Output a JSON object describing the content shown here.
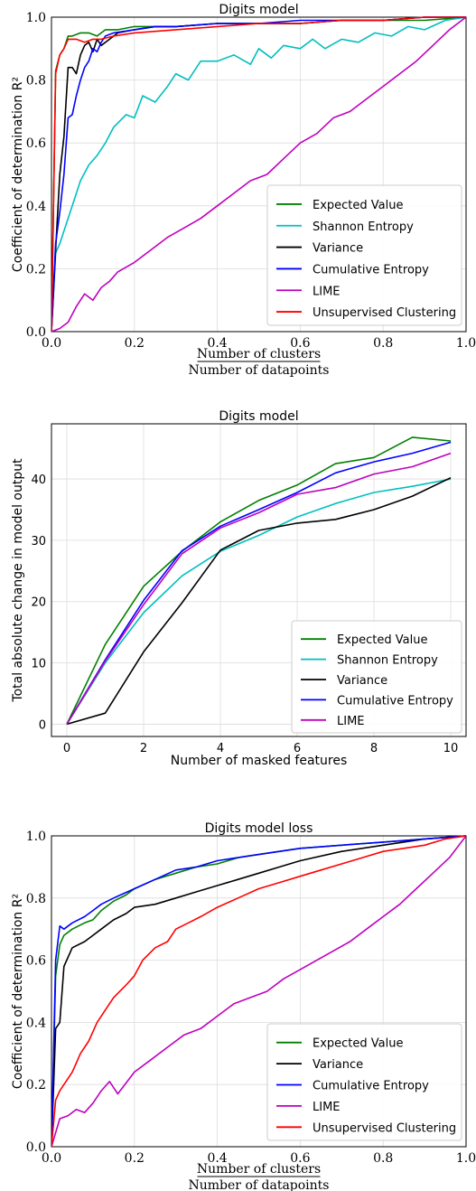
{
  "chart_data": [
    {
      "type": "line",
      "title": "Digits model",
      "ylabel": "Coefficient of determination R²",
      "xlabel_numerator": "Number of clusters",
      "xlabel_denominator": "Number of datapoints",
      "xlim": [
        0,
        1
      ],
      "ylim": [
        0,
        1
      ],
      "xticks": [
        "0.0",
        "0.2",
        "0.4",
        "0.6",
        "0.8",
        "1.0"
      ],
      "yticks": [
        "0.0",
        "0.2",
        "0.4",
        "0.6",
        "0.8",
        "1.0"
      ],
      "grid": true,
      "legend_position": "bottom-right",
      "series": [
        {
          "name": "Expected Value",
          "color": "#008000",
          "x": [
            0,
            0.01,
            0.02,
            0.03,
            0.04,
            0.05,
            0.07,
            0.09,
            0.11,
            0.13,
            0.16,
            0.2,
            0.25,
            0.3,
            0.4,
            0.5,
            0.6,
            0.7,
            0.8,
            0.9,
            1.0
          ],
          "y": [
            0,
            0.83,
            0.88,
            0.9,
            0.94,
            0.94,
            0.95,
            0.95,
            0.94,
            0.96,
            0.96,
            0.97,
            0.97,
            0.97,
            0.98,
            0.98,
            0.98,
            0.99,
            0.99,
            0.99,
            1.0
          ]
        },
        {
          "name": "Shannon Entropy",
          "color": "#00bfbf",
          "x": [
            0,
            0.01,
            0.02,
            0.03,
            0.05,
            0.07,
            0.09,
            0.11,
            0.13,
            0.15,
            0.18,
            0.2,
            0.22,
            0.25,
            0.28,
            0.3,
            0.33,
            0.36,
            0.4,
            0.44,
            0.48,
            0.5,
            0.53,
            0.56,
            0.6,
            0.63,
            0.66,
            0.7,
            0.74,
            0.78,
            0.82,
            0.86,
            0.9,
            0.95,
            1.0
          ],
          "y": [
            0,
            0.25,
            0.28,
            0.32,
            0.4,
            0.48,
            0.53,
            0.56,
            0.6,
            0.65,
            0.69,
            0.68,
            0.75,
            0.73,
            0.78,
            0.82,
            0.8,
            0.86,
            0.86,
            0.88,
            0.85,
            0.9,
            0.87,
            0.91,
            0.9,
            0.93,
            0.9,
            0.93,
            0.92,
            0.95,
            0.94,
            0.97,
            0.96,
            0.99,
            1.0
          ]
        },
        {
          "name": "Variance",
          "color": "#000000",
          "x": [
            0,
            0.01,
            0.02,
            0.03,
            0.04,
            0.05,
            0.06,
            0.07,
            0.08,
            0.09,
            0.1,
            0.11,
            0.12,
            0.14,
            0.16,
            0.2,
            0.25,
            0.3,
            0.4,
            0.5,
            0.6,
            0.7,
            0.8,
            0.9,
            1.0
          ],
          "y": [
            0,
            0.26,
            0.5,
            0.62,
            0.84,
            0.84,
            0.82,
            0.88,
            0.91,
            0.92,
            0.89,
            0.93,
            0.91,
            0.93,
            0.95,
            0.96,
            0.97,
            0.97,
            0.98,
            0.98,
            0.98,
            0.99,
            0.99,
            1.0,
            1.0
          ]
        },
        {
          "name": "Cumulative Entropy",
          "color": "#0000ff",
          "x": [
            0,
            0.01,
            0.02,
            0.03,
            0.04,
            0.05,
            0.06,
            0.07,
            0.08,
            0.09,
            0.1,
            0.11,
            0.12,
            0.13,
            0.15,
            0.2,
            0.25,
            0.3,
            0.4,
            0.5,
            0.6,
            0.7,
            0.8,
            0.9,
            1.0
          ],
          "y": [
            0,
            0.28,
            0.38,
            0.5,
            0.68,
            0.69,
            0.75,
            0.8,
            0.84,
            0.86,
            0.9,
            0.89,
            0.92,
            0.94,
            0.95,
            0.96,
            0.97,
            0.97,
            0.98,
            0.98,
            0.99,
            0.99,
            0.99,
            1.0,
            1.0
          ]
        },
        {
          "name": "LIME",
          "color": "#bf00bf",
          "x": [
            0,
            0.02,
            0.04,
            0.06,
            0.08,
            0.1,
            0.12,
            0.14,
            0.16,
            0.2,
            0.24,
            0.28,
            0.32,
            0.36,
            0.4,
            0.44,
            0.48,
            0.52,
            0.56,
            0.6,
            0.64,
            0.68,
            0.72,
            0.76,
            0.8,
            0.84,
            0.88,
            0.92,
            0.96,
            1.0
          ],
          "y": [
            0,
            0.01,
            0.03,
            0.08,
            0.12,
            0.1,
            0.14,
            0.16,
            0.19,
            0.22,
            0.26,
            0.3,
            0.33,
            0.36,
            0.4,
            0.44,
            0.48,
            0.5,
            0.55,
            0.6,
            0.63,
            0.68,
            0.7,
            0.74,
            0.78,
            0.82,
            0.86,
            0.91,
            0.96,
            1.0
          ]
        },
        {
          "name": "Unsupervised Clustering",
          "color": "#ff0000",
          "x": [
            0,
            0.01,
            0.02,
            0.03,
            0.04,
            0.05,
            0.06,
            0.08,
            0.1,
            0.12,
            0.15,
            0.2,
            0.3,
            0.4,
            0.5,
            0.6,
            0.7,
            0.8,
            0.9,
            1.0
          ],
          "y": [
            0,
            0.82,
            0.88,
            0.9,
            0.93,
            0.93,
            0.93,
            0.92,
            0.93,
            0.93,
            0.94,
            0.95,
            0.96,
            0.97,
            0.98,
            0.98,
            0.99,
            0.99,
            1.0,
            1.0
          ]
        }
      ]
    },
    {
      "type": "line",
      "title": "Digits model",
      "ylabel": "Total absolute change in model output",
      "xlabel": "Number of masked features",
      "xlim": [
        -0.4,
        10.4
      ],
      "ylim": [
        -2,
        49
      ],
      "xticks": [
        "0",
        "2",
        "4",
        "6",
        "8",
        "10"
      ],
      "yticks": [
        "0",
        "10",
        "20",
        "30",
        "40"
      ],
      "grid": true,
      "legend_position": "bottom-right",
      "x": [
        0,
        1,
        2,
        3,
        4,
        5,
        6,
        7,
        8,
        9,
        10
      ],
      "series": [
        {
          "name": "Expected Value",
          "color": "#008000",
          "values": [
            0,
            13,
            22.5,
            28.2,
            33,
            36.5,
            39,
            42.5,
            43.5,
            46.8,
            46.2
          ]
        },
        {
          "name": "Shannon Entropy",
          "color": "#00bfbf",
          "values": [
            0,
            10,
            18.2,
            24.2,
            28.2,
            30.8,
            33.8,
            36,
            37.8,
            38.8,
            40
          ]
        },
        {
          "name": "Variance",
          "color": "#000000",
          "values": [
            0,
            1.8,
            11.8,
            19.8,
            28.4,
            31.6,
            32.8,
            33.4,
            35,
            37.2,
            40.2
          ]
        },
        {
          "name": "Cumulative Entropy",
          "color": "#0000ff",
          "values": [
            0,
            10.5,
            20.2,
            28.3,
            32.3,
            35,
            37.8,
            41,
            42.8,
            44.2,
            46
          ]
        },
        {
          "name": "LIME",
          "color": "#bf00bf",
          "values": [
            0,
            10.3,
            19.5,
            27.8,
            32,
            34.5,
            37.5,
            38.6,
            40.8,
            42,
            44.2
          ]
        }
      ]
    },
    {
      "type": "line",
      "title": "Digits model loss",
      "ylabel": "Coefficient of determination R²",
      "xlabel_numerator": "Number of clusters",
      "xlabel_denominator": "Number of datapoints",
      "xlim": [
        0,
        1
      ],
      "ylim": [
        0,
        1
      ],
      "xticks": [
        "0.0",
        "0.2",
        "0.4",
        "0.6",
        "0.8",
        "1.0"
      ],
      "yticks": [
        "0.0",
        "0.2",
        "0.4",
        "0.6",
        "0.8",
        "1.0"
      ],
      "grid": true,
      "legend_position": "bottom-right",
      "series": [
        {
          "name": "Expected Value",
          "color": "#008000",
          "x": [
            0,
            0.01,
            0.02,
            0.03,
            0.05,
            0.08,
            0.1,
            0.12,
            0.15,
            0.18,
            0.2,
            0.25,
            0.3,
            0.35,
            0.4,
            0.45,
            0.5,
            0.6,
            0.7,
            0.8,
            0.9,
            1.0
          ],
          "y": [
            0,
            0.55,
            0.65,
            0.68,
            0.7,
            0.72,
            0.73,
            0.76,
            0.79,
            0.81,
            0.83,
            0.86,
            0.88,
            0.9,
            0.91,
            0.93,
            0.94,
            0.96,
            0.97,
            0.98,
            0.99,
            1.0
          ]
        },
        {
          "name": "Variance",
          "color": "#000000",
          "x": [
            0,
            0.01,
            0.02,
            0.03,
            0.05,
            0.08,
            0.1,
            0.12,
            0.15,
            0.18,
            0.2,
            0.25,
            0.3,
            0.35,
            0.4,
            0.45,
            0.5,
            0.55,
            0.6,
            0.7,
            0.8,
            0.9,
            1.0
          ],
          "y": [
            0,
            0.38,
            0.4,
            0.58,
            0.64,
            0.66,
            0.68,
            0.7,
            0.73,
            0.75,
            0.77,
            0.78,
            0.8,
            0.82,
            0.84,
            0.86,
            0.88,
            0.9,
            0.92,
            0.95,
            0.97,
            0.99,
            1.0
          ]
        },
        {
          "name": "Cumulative Entropy",
          "color": "#0000ff",
          "x": [
            0,
            0.01,
            0.02,
            0.03,
            0.05,
            0.08,
            0.1,
            0.12,
            0.15,
            0.2,
            0.25,
            0.3,
            0.35,
            0.4,
            0.5,
            0.6,
            0.7,
            0.8,
            0.9,
            1.0
          ],
          "y": [
            0,
            0.6,
            0.71,
            0.7,
            0.72,
            0.74,
            0.76,
            0.78,
            0.8,
            0.83,
            0.86,
            0.89,
            0.9,
            0.92,
            0.94,
            0.96,
            0.97,
            0.98,
            0.99,
            1.0
          ]
        },
        {
          "name": "LIME",
          "color": "#bf00bf",
          "x": [
            0,
            0.02,
            0.04,
            0.06,
            0.08,
            0.1,
            0.12,
            0.14,
            0.16,
            0.2,
            0.24,
            0.28,
            0.32,
            0.36,
            0.4,
            0.44,
            0.48,
            0.52,
            0.56,
            0.6,
            0.64,
            0.68,
            0.72,
            0.76,
            0.8,
            0.84,
            0.88,
            0.92,
            0.96,
            1.0
          ],
          "y": [
            0,
            0.09,
            0.1,
            0.12,
            0.11,
            0.14,
            0.18,
            0.21,
            0.17,
            0.24,
            0.28,
            0.32,
            0.36,
            0.38,
            0.42,
            0.46,
            0.48,
            0.5,
            0.54,
            0.57,
            0.6,
            0.63,
            0.66,
            0.7,
            0.74,
            0.78,
            0.83,
            0.88,
            0.93,
            1.0
          ]
        },
        {
          "name": "Unsupervised Clustering",
          "color": "#ff0000",
          "x": [
            0,
            0.01,
            0.02,
            0.03,
            0.05,
            0.07,
            0.09,
            0.11,
            0.13,
            0.15,
            0.18,
            0.2,
            0.22,
            0.25,
            0.28,
            0.3,
            0.33,
            0.36,
            0.4,
            0.45,
            0.5,
            0.55,
            0.6,
            0.65,
            0.7,
            0.75,
            0.8,
            0.85,
            0.9,
            0.95,
            1.0
          ],
          "y": [
            0,
            0.15,
            0.18,
            0.2,
            0.24,
            0.3,
            0.34,
            0.4,
            0.44,
            0.48,
            0.52,
            0.55,
            0.6,
            0.64,
            0.66,
            0.7,
            0.72,
            0.74,
            0.77,
            0.8,
            0.83,
            0.85,
            0.87,
            0.89,
            0.91,
            0.93,
            0.95,
            0.96,
            0.97,
            0.99,
            1.0
          ]
        }
      ]
    }
  ]
}
